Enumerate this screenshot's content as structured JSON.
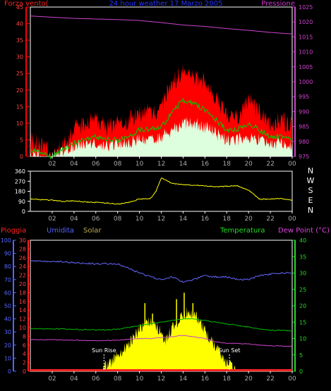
{
  "chart_data": [
    {
      "type": "line",
      "title": "24 hour weather 17 Marzo 2005",
      "left_axis_label": "Forza vento(",
      "right_axis_label": "Pressione",
      "x_tick_labels": [
        "02",
        "04",
        "06",
        "08",
        "10",
        "12",
        "14",
        "16",
        "18",
        "20",
        "22",
        "00"
      ],
      "left_axis": {
        "min": 0,
        "max": 45,
        "ticks": [
          0,
          5,
          10,
          15,
          20,
          25,
          30,
          35,
          40,
          45
        ]
      },
      "right_axis": {
        "min": 975,
        "max": 1025,
        "ticks": [
          975,
          980,
          985,
          990,
          995,
          1000,
          1005,
          1010,
          1015,
          1020,
          1025
        ]
      },
      "series": [
        {
          "role": "pressure",
          "color": "#cc44cc",
          "x": [
            0,
            2,
            4,
            6,
            8,
            10,
            12,
            14,
            16,
            18,
            20,
            22,
            24
          ],
          "values": [
            1022,
            1021.6,
            1021.2,
            1021,
            1020.8,
            1020.5,
            1019.8,
            1019,
            1018.5,
            1017.8,
            1017.2,
            1016.5,
            1016
          ]
        },
        {
          "role": "gust",
          "color": "#ff0000",
          "x": [
            0,
            1,
            2,
            3,
            4,
            5,
            6,
            7,
            8,
            9,
            10,
            11,
            12,
            13,
            14,
            15,
            16,
            17,
            18,
            19,
            20,
            21,
            22,
            23,
            24
          ],
          "values": [
            5,
            3,
            0,
            3,
            8,
            10,
            11,
            9,
            10,
            11,
            13,
            13,
            15,
            22,
            26,
            24,
            22,
            18,
            13,
            12,
            17,
            13,
            10,
            11,
            9
          ]
        },
        {
          "role": "average_wind",
          "color": "#00cc00",
          "x": [
            0,
            1,
            2,
            3,
            4,
            5,
            6,
            7,
            8,
            9,
            10,
            11,
            12,
            13,
            14,
            15,
            16,
            17,
            18,
            19,
            20,
            21,
            22,
            23,
            24
          ],
          "values": [
            2,
            1,
            0,
            2,
            4,
            5,
            6,
            5,
            5,
            6,
            8,
            8,
            9,
            13,
            17,
            16,
            14,
            11,
            8,
            8,
            10,
            8,
            6,
            6,
            5
          ]
        },
        {
          "role": "wind_speed",
          "color": "#ddffdd",
          "x": [
            0,
            1,
            2,
            3,
            4,
            5,
            6,
            7,
            8,
            9,
            10,
            11,
            12,
            13,
            14,
            15,
            16,
            17,
            18,
            19,
            20,
            21,
            22,
            23,
            24
          ],
          "values": [
            1,
            0,
            0,
            1,
            3,
            4,
            4,
            3,
            4,
            4,
            5,
            5,
            6,
            8,
            10,
            10,
            9,
            7,
            5,
            5,
            6,
            5,
            4,
            4,
            3
          ]
        }
      ]
    },
    {
      "type": "line",
      "right_labels": [
        "N",
        "W",
        "S",
        "E",
        "N"
      ],
      "x_tick_labels": [
        "02",
        "04",
        "06",
        "08",
        "10",
        "12",
        "14",
        "16",
        "18",
        "20",
        "22",
        "00"
      ],
      "y_axis": {
        "min": 0,
        "max": 360,
        "ticks": [
          0,
          90,
          180,
          270,
          360
        ]
      },
      "series": [
        {
          "role": "wind_direction",
          "color": "#ffff00",
          "x": [
            0,
            1,
            2,
            3,
            4,
            5,
            6,
            7,
            8,
            9,
            10,
            11,
            11.5,
            12,
            13,
            14,
            15,
            16,
            17,
            18,
            19,
            20,
            21,
            22,
            23,
            24
          ],
          "values": [
            110,
            105,
            100,
            90,
            95,
            85,
            80,
            75,
            65,
            80,
            110,
            115,
            175,
            300,
            250,
            240,
            235,
            230,
            220,
            225,
            230,
            190,
            110,
            110,
            115,
            100
          ]
        }
      ]
    },
    {
      "type": "area",
      "labels": {
        "rain": "Pioggia",
        "humidity": "Umidita",
        "solar": "Solar",
        "temperature": "Temperatura",
        "dewpoint": "Dew Point (°C)"
      },
      "annotations": {
        "sun_rise": "Sun Rise",
        "sun_set": "Sun Set"
      },
      "x_tick_labels": [
        "02",
        "04",
        "06",
        "08",
        "10",
        "12",
        "14",
        "16",
        "18",
        "20",
        "22",
        "00"
      ],
      "humidity_axis": {
        "min": 0,
        "max": 100,
        "ticks": [
          0,
          10,
          20,
          30,
          40,
          50,
          60,
          70,
          80,
          90,
          100
        ]
      },
      "rain_axis": {
        "min": 0,
        "max": 30,
        "ticks": [
          0,
          2,
          4,
          6,
          8,
          10,
          12,
          14,
          16,
          18,
          20,
          22,
          24,
          26,
          28,
          30
        ]
      },
      "temperature_axis": {
        "min": 0,
        "max": 40,
        "ticks": [
          0,
          5,
          10,
          15,
          20,
          25,
          30,
          35,
          40
        ]
      },
      "series": [
        {
          "role": "humidity",
          "color": "#6666ff",
          "x": [
            0,
            2,
            4,
            6,
            8,
            10,
            11,
            12,
            13,
            14,
            15,
            16,
            17,
            18,
            19,
            20,
            21,
            22,
            23,
            24
          ],
          "values": [
            84,
            84,
            83,
            82,
            82,
            75,
            72,
            70,
            72,
            68,
            70,
            73,
            72,
            72,
            70,
            70,
            73,
            74,
            75,
            75
          ]
        },
        {
          "role": "temperature",
          "color": "#00bb00",
          "x": [
            0,
            2,
            4,
            6,
            8,
            10,
            11,
            12,
            13,
            14,
            15,
            16,
            17,
            18,
            19,
            20,
            21,
            22,
            23,
            24
          ],
          "values": [
            13,
            13,
            12.8,
            12.6,
            12.8,
            14,
            14.5,
            15,
            15.5,
            16,
            16,
            15.5,
            15,
            14.5,
            14,
            13.5,
            13,
            12.5,
            12.5,
            12.3
          ]
        },
        {
          "role": "dewpoint",
          "color": "#cc44cc",
          "x": [
            0,
            2,
            4,
            6,
            8,
            10,
            11,
            12,
            13,
            14,
            15,
            16,
            17,
            18,
            19,
            20,
            21,
            22,
            23,
            24
          ],
          "values": [
            9.7,
            9.6,
            9.5,
            9.3,
            9.5,
            10,
            10,
            10.3,
            10.5,
            11,
            10.5,
            10,
            9,
            8.5,
            8.5,
            8.3,
            8,
            7.8,
            7.7,
            7.6
          ]
        },
        {
          "role": "solar",
          "color": "#ffff00",
          "x": [
            0,
            6.5,
            7,
            7.5,
            8,
            8.5,
            9,
            9.5,
            10,
            10.5,
            11,
            11.5,
            12,
            12.5,
            13,
            13.5,
            14,
            14.5,
            15,
            15.5,
            16,
            16.5,
            17,
            17.5,
            18,
            18.5,
            19,
            24
          ],
          "values": [
            0,
            0,
            4,
            8,
            12,
            16,
            20,
            26,
            32,
            35,
            40,
            36,
            28,
            24,
            34,
            38,
            42,
            46,
            44,
            40,
            30,
            24,
            18,
            12,
            6,
            3,
            0,
            0
          ]
        },
        {
          "role": "rain",
          "color": "#ff0000",
          "x": [
            0,
            24
          ],
          "values": [
            0,
            0
          ]
        }
      ]
    }
  ]
}
